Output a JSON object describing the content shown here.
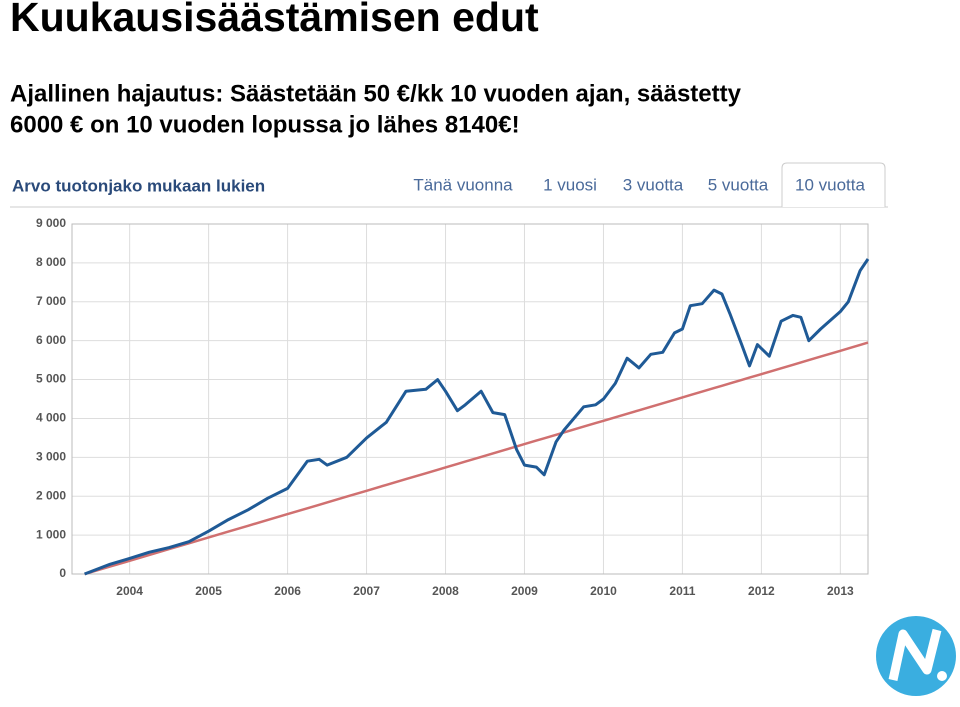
{
  "slide": {
    "title": "Kuukausisäästämisen edut",
    "subtitle": [
      "Ajallinen hajautus: Säästetään 50 €/kk 10 vuoden ajan, säästetty",
      "6000 € on 10 vuoden lopussa jo lähes 8140€!"
    ]
  },
  "panel": {
    "header": "Arvo tuotonjako mukaan lukien",
    "tabs": [
      "Tänä vuonna",
      "1 vuosi",
      "3 vuotta",
      "5 vuotta",
      "10 vuotta"
    ],
    "selected_tab": 4
  },
  "chart_data": {
    "type": "line",
    "x": [
      2003.43,
      2003.75,
      2004.0,
      2004.25,
      2004.5,
      2004.75,
      2005.0,
      2005.25,
      2005.5,
      2005.75,
      2006.0,
      2006.25,
      2006.4,
      2006.5,
      2006.75,
      2007.0,
      2007.25,
      2007.5,
      2007.75,
      2007.9,
      2008.0,
      2008.15,
      2008.25,
      2008.45,
      2008.6,
      2008.75,
      2008.9,
      2009.0,
      2009.15,
      2009.25,
      2009.4,
      2009.5,
      2009.75,
      2009.9,
      2010.0,
      2010.15,
      2010.3,
      2010.45,
      2010.6,
      2010.75,
      2010.9,
      2011.0,
      2011.1,
      2011.25,
      2011.4,
      2011.5,
      2011.6,
      2011.75,
      2011.85,
      2011.95,
      2012.1,
      2012.25,
      2012.4,
      2012.5,
      2012.6,
      2012.75,
      2013.0,
      2013.1,
      2013.25,
      2013.35
    ],
    "series": [
      {
        "color": "#1f5a96",
        "values": [
          0,
          250,
          400,
          560,
          680,
          830,
          1100,
          1400,
          1650,
          1950,
          2200,
          2900,
          2950,
          2800,
          3000,
          3500,
          3900,
          4700,
          4750,
          5000,
          4700,
          4200,
          4350,
          4700,
          4150,
          4100,
          3200,
          2800,
          2750,
          2550,
          3400,
          3700,
          4300,
          4350,
          4500,
          4900,
          5550,
          5300,
          5650,
          5700,
          6200,
          6300,
          6900,
          6950,
          7300,
          7200,
          6700,
          5900,
          5350,
          5900,
          5600,
          6500,
          6650,
          6600,
          6000,
          6300,
          6750,
          7000,
          7800,
          8100
        ]
      },
      {
        "color": "#d07070",
        "values": [
          0,
          190,
          340,
          490,
          640,
          790,
          940,
          1090,
          1240,
          1390,
          1540,
          1690,
          1780,
          1840,
          1990,
          2140,
          2290,
          2440,
          2590,
          2680,
          2740,
          2830,
          2890,
          3010,
          3100,
          3190,
          3280,
          3340,
          3430,
          3490,
          3580,
          3640,
          3790,
          3880,
          3940,
          4030,
          4120,
          4210,
          4300,
          4390,
          4480,
          4540,
          4600,
          4690,
          4780,
          4840,
          4900,
          4990,
          5050,
          5110,
          5200,
          5290,
          5380,
          5440,
          5500,
          5590,
          5740,
          5800,
          5890,
          5950
        ]
      }
    ],
    "xlim": [
      2003.27,
      2013.35
    ],
    "xticks": [
      2004,
      2005,
      2006,
      2007,
      2008,
      2009,
      2010,
      2011,
      2012,
      2013
    ],
    "ylim": [
      0,
      9000
    ],
    "yticks": [
      0,
      {
        "value": 1000,
        "label": "1 000"
      },
      {
        "value": 2000,
        "label": "2 000"
      },
      {
        "value": 3000,
        "label": "3 000"
      },
      {
        "value": 4000,
        "label": "4 000"
      },
      {
        "value": 5000,
        "label": "5 000"
      },
      {
        "value": 6000,
        "label": "6 000"
      },
      {
        "value": 7000,
        "label": "7 000"
      },
      {
        "value": 8000,
        "label": "8 000"
      },
      {
        "value": 9000,
        "label": "9 000"
      }
    ],
    "grid": true
  }
}
